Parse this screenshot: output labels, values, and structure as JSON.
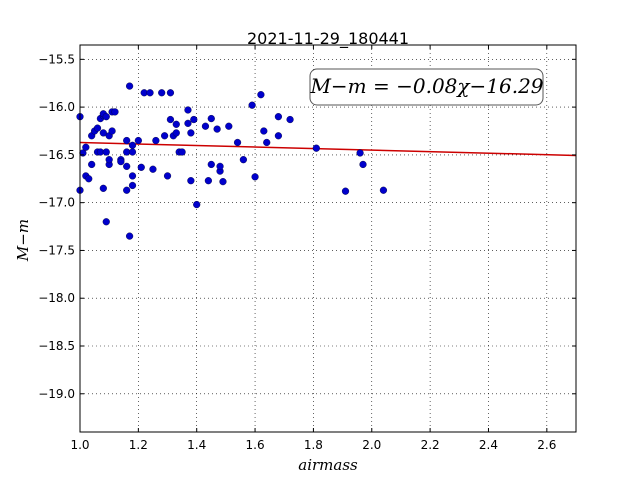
{
  "chart_data": {
    "type": "scatter",
    "title": "2021-11-29_180441",
    "xlabel": "airmass",
    "ylabel": "M−m",
    "xlim": [
      1.0,
      2.7
    ],
    "ylim": [
      -19.4,
      -15.35
    ],
    "y_inverted": true,
    "xticks": [
      1.0,
      1.2,
      1.4,
      1.6,
      1.8,
      2.0,
      2.2,
      2.4,
      2.6
    ],
    "xtick_labels": [
      "1.0",
      "1.2",
      "1.4",
      "1.6",
      "1.8",
      "2.0",
      "2.2",
      "2.4",
      "2.6"
    ],
    "yticks": [
      -15.5,
      -16.0,
      -16.5,
      -17.0,
      -17.5,
      -18.0,
      -18.5,
      -19.0
    ],
    "ytick_labels": [
      "−15.5",
      "−16.0",
      "−16.5",
      "−17.0",
      "−17.5",
      "−18.0",
      "−18.5",
      "−19.0"
    ],
    "grid": true,
    "point_color": "#0000cc",
    "line_color": "#cc0000",
    "fit": {
      "slope": -0.08,
      "intercept": -16.29,
      "label": "M−m = −0.08χ−16.29"
    },
    "points": [
      [
        1.0,
        -16.1
      ],
      [
        1.01,
        -16.48
      ],
      [
        1.02,
        -16.42
      ],
      [
        1.0,
        -16.87
      ],
      [
        1.02,
        -16.72
      ],
      [
        1.03,
        -16.75
      ],
      [
        1.04,
        -16.6
      ],
      [
        1.04,
        -16.3
      ],
      [
        1.05,
        -16.25
      ],
      [
        1.06,
        -16.22
      ],
      [
        1.06,
        -16.47
      ],
      [
        1.07,
        -16.47
      ],
      [
        1.07,
        -16.12
      ],
      [
        1.08,
        -16.09
      ],
      [
        1.08,
        -16.07
      ],
      [
        1.09,
        -16.1
      ],
      [
        1.08,
        -16.27
      ],
      [
        1.08,
        -16.85
      ],
      [
        1.09,
        -16.47
      ],
      [
        1.1,
        -16.6
      ],
      [
        1.11,
        -16.05
      ],
      [
        1.1,
        -16.3
      ],
      [
        1.11,
        -16.25
      ],
      [
        1.1,
        -16.55
      ],
      [
        1.09,
        -17.2
      ],
      [
        1.12,
        -16.05
      ],
      [
        1.14,
        -16.55
      ],
      [
        1.14,
        -16.57
      ],
      [
        1.16,
        -16.47
      ],
      [
        1.16,
        -16.35
      ],
      [
        1.17,
        -15.78
      ],
      [
        1.16,
        -16.62
      ],
      [
        1.16,
        -16.87
      ],
      [
        1.18,
        -16.4
      ],
      [
        1.18,
        -16.47
      ],
      [
        1.18,
        -16.72
      ],
      [
        1.18,
        -16.82
      ],
      [
        1.2,
        -16.35
      ],
      [
        1.17,
        -17.35
      ],
      [
        1.21,
        -16.63
      ],
      [
        1.22,
        -15.85
      ],
      [
        1.24,
        -15.85
      ],
      [
        1.25,
        -16.65
      ],
      [
        1.26,
        -16.35
      ],
      [
        1.28,
        -15.85
      ],
      [
        1.29,
        -16.3
      ],
      [
        1.3,
        -16.72
      ],
      [
        1.31,
        -15.85
      ],
      [
        1.31,
        -16.13
      ],
      [
        1.32,
        -16.3
      ],
      [
        1.33,
        -16.27
      ],
      [
        1.33,
        -16.18
      ],
      [
        1.34,
        -16.47
      ],
      [
        1.35,
        -16.47
      ],
      [
        1.37,
        -16.03
      ],
      [
        1.37,
        -16.17
      ],
      [
        1.38,
        -16.27
      ],
      [
        1.38,
        -16.77
      ],
      [
        1.39,
        -16.13
      ],
      [
        1.4,
        -17.02
      ],
      [
        1.43,
        -16.2
      ],
      [
        1.44,
        -16.77
      ],
      [
        1.45,
        -16.6
      ],
      [
        1.45,
        -16.12
      ],
      [
        1.47,
        -16.23
      ],
      [
        1.48,
        -16.67
      ],
      [
        1.48,
        -16.62
      ],
      [
        1.49,
        -16.78
      ],
      [
        1.51,
        -16.2
      ],
      [
        1.54,
        -16.37
      ],
      [
        1.56,
        -16.55
      ],
      [
        1.59,
        -15.98
      ],
      [
        1.6,
        -16.73
      ],
      [
        1.62,
        -15.87
      ],
      [
        1.63,
        -16.25
      ],
      [
        1.64,
        -16.37
      ],
      [
        1.68,
        -16.1
      ],
      [
        1.68,
        -16.3
      ],
      [
        1.72,
        -16.13
      ],
      [
        1.81,
        -16.43
      ],
      [
        1.91,
        -16.88
      ],
      [
        1.96,
        -16.48
      ],
      [
        1.97,
        -16.6
      ],
      [
        2.04,
        -16.87
      ]
    ]
  }
}
